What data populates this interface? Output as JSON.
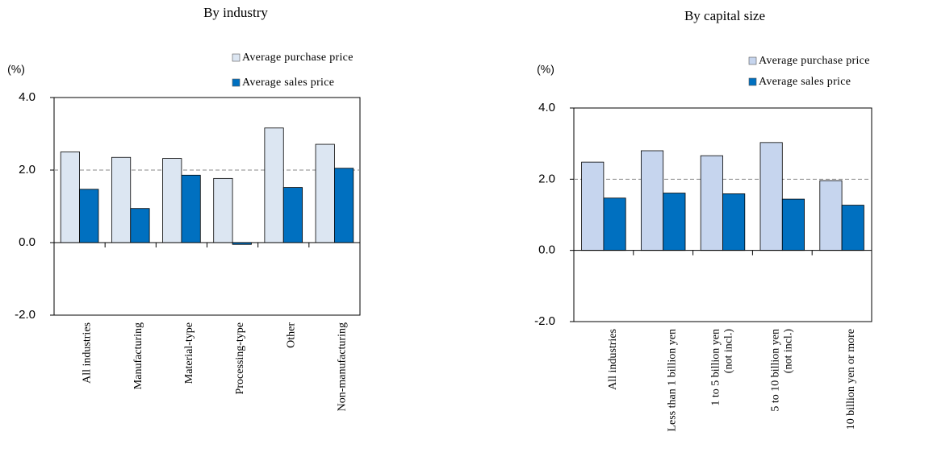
{
  "chart_data": [
    {
      "type": "bar",
      "title": "By industry",
      "y_label": "(%)",
      "categories": [
        "All industries",
        "Manufacturing",
        "Material-type",
        "Processing-type",
        "Other",
        "Non-manufacturing"
      ],
      "series": [
        {
          "name": "Average purchase price",
          "color": "#dce6f2",
          "values": [
            2.5,
            2.35,
            2.32,
            1.77,
            3.16,
            2.71
          ]
        },
        {
          "name": "Average sales price",
          "color": "#0070c0",
          "values": [
            1.47,
            0.94,
            1.86,
            -0.05,
            1.52,
            2.05
          ]
        }
      ],
      "ylim": [
        -2,
        4
      ],
      "yticks": [
        {
          "value": -2,
          "label": "-2.0"
        },
        {
          "value": 0,
          "label": "0.0"
        },
        {
          "value": 2,
          "label": "2.0"
        },
        {
          "value": 4,
          "label": "4.0"
        }
      ],
      "reference_line": 2
    },
    {
      "type": "bar",
      "title": "By capital size",
      "y_label": "(%)",
      "categories": [
        "All industries",
        "Less than 1 billion yen",
        "1 to 5 billion yen\n(not incl.)",
        "5 to 10 billion yen\n(not incl.)",
        "10 billion yen or more"
      ],
      "series": [
        {
          "name": "Average purchase price",
          "color": "#c6d5ee",
          "values": [
            2.48,
            2.8,
            2.66,
            3.03,
            1.96
          ]
        },
        {
          "name": "Average sales price",
          "color": "#0070c0",
          "values": [
            1.47,
            1.61,
            1.59,
            1.44,
            1.27
          ]
        }
      ],
      "ylim": [
        -2,
        4
      ],
      "yticks": [
        {
          "value": -2,
          "label": "-2.0"
        },
        {
          "value": 0,
          "label": "0.0"
        },
        {
          "value": 2,
          "label": "2.0"
        },
        {
          "value": 4,
          "label": "4.0"
        }
      ],
      "reference_line": 2
    }
  ]
}
